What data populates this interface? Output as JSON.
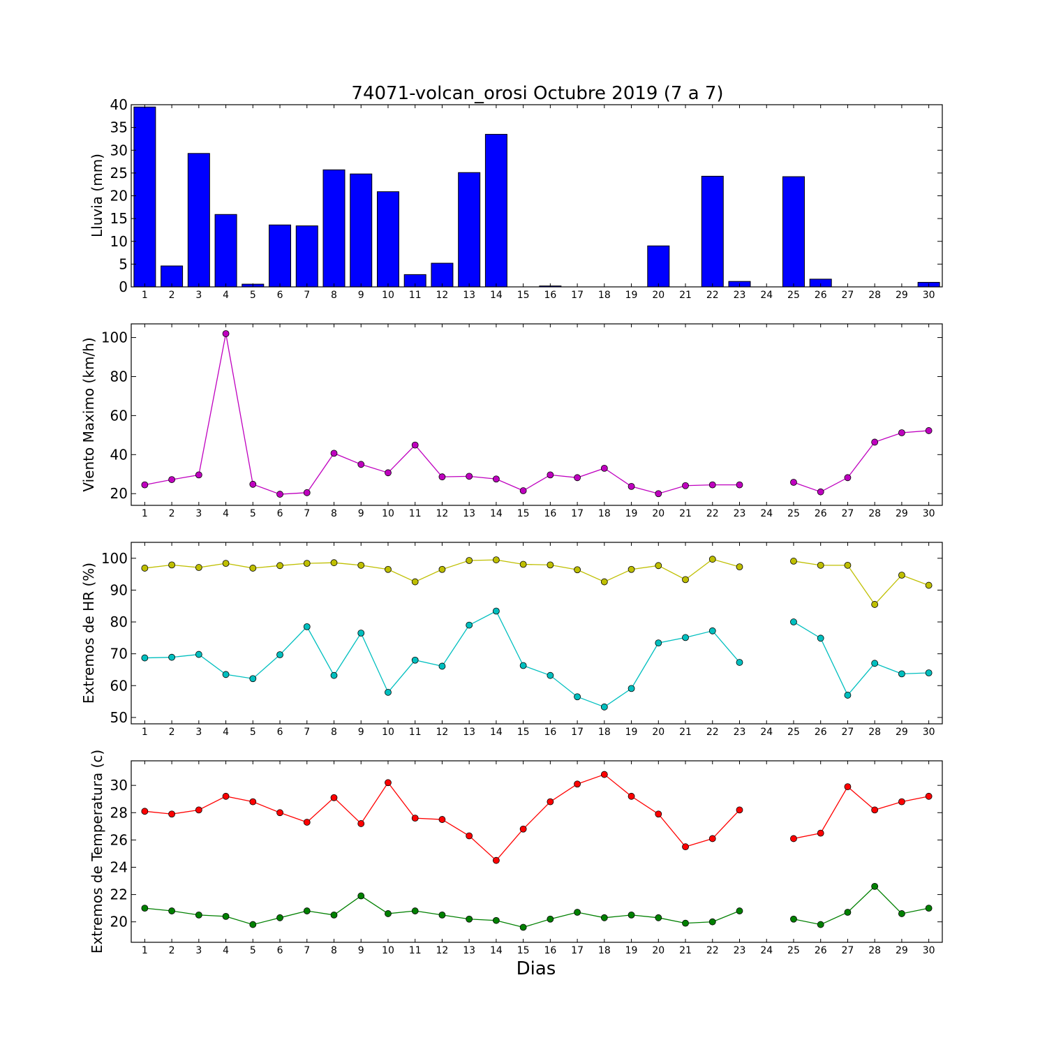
{
  "title": "74071-volcan_orosi Octubre 2019  (7 a 7)",
  "xlabel": "Dias",
  "chart_data": [
    {
      "id": "rain",
      "type": "bar",
      "ylabel": "Lluvia (mm)",
      "ylim": [
        0,
        40
      ],
      "yticks": [
        0,
        5,
        10,
        15,
        20,
        25,
        30,
        35,
        40
      ],
      "color": "#0000ff",
      "categories": [
        1,
        2,
        3,
        4,
        5,
        6,
        7,
        8,
        9,
        10,
        11,
        12,
        13,
        14,
        15,
        16,
        17,
        18,
        19,
        20,
        21,
        22,
        23,
        24,
        25,
        26,
        27,
        28,
        29,
        30
      ],
      "values": [
        39.5,
        4.6,
        29.3,
        15.9,
        0.6,
        13.6,
        13.4,
        25.7,
        24.8,
        20.9,
        2.7,
        5.2,
        25.1,
        33.5,
        0,
        0.2,
        0,
        0,
        0,
        9.0,
        0,
        24.3,
        1.2,
        0,
        24.2,
        1.7,
        0,
        0,
        0,
        1.0
      ]
    },
    {
      "id": "wind",
      "type": "line",
      "ylabel": "Viento Maximo (km/h)",
      "ylim": [
        14,
        107
      ],
      "yticks": [
        20,
        40,
        60,
        80,
        100
      ],
      "series": [
        {
          "color": "#bf00bf",
          "values": [
            24.5,
            27.2,
            29.6,
            102.0,
            24.8,
            19.7,
            20.5,
            40.7,
            35.0,
            30.7,
            44.9,
            28.6,
            28.9,
            27.5,
            21.5,
            29.6,
            28.2,
            33.0,
            23.7,
            20.0,
            24.1,
            24.5,
            24.5,
            null,
            25.8,
            20.9,
            28.2,
            46.4,
            51.2,
            52.3
          ]
        }
      ]
    },
    {
      "id": "humidity",
      "type": "line",
      "ylabel": "Extremos de HR (%)",
      "ylim": [
        48,
        105
      ],
      "yticks": [
        50,
        60,
        70,
        80,
        90,
        100
      ],
      "series": [
        {
          "color": "#bfbf00",
          "values": [
            96.9,
            97.9,
            97.1,
            98.4,
            96.9,
            97.7,
            98.4,
            98.6,
            97.8,
            96.5,
            92.6,
            96.5,
            99.3,
            99.5,
            98.1,
            97.9,
            96.4,
            92.6,
            96.5,
            97.7,
            93.3,
            99.7,
            97.3,
            null,
            99.1,
            97.8,
            97.8,
            85.5,
            94.7,
            91.5
          ]
        },
        {
          "color": "#00bfbf",
          "values": [
            68.7,
            68.9,
            69.8,
            63.5,
            62.2,
            69.7,
            78.5,
            63.2,
            76.5,
            57.9,
            68.0,
            66.1,
            79.0,
            83.4,
            66.3,
            63.2,
            56.5,
            53.3,
            59.1,
            73.4,
            75.1,
            77.2,
            67.3,
            null,
            80.0,
            74.9,
            57.0,
            67.0,
            63.7,
            64.0
          ]
        }
      ]
    },
    {
      "id": "temperature",
      "type": "line",
      "ylabel": "Extremos de Temperatura (c)",
      "ylim": [
        18.5,
        31.8
      ],
      "yticks": [
        20,
        22,
        24,
        26,
        28,
        30
      ],
      "series": [
        {
          "color": "#ff0000",
          "values": [
            28.1,
            27.9,
            28.2,
            29.2,
            28.8,
            28.0,
            27.3,
            29.1,
            27.2,
            30.2,
            27.6,
            27.5,
            26.3,
            24.5,
            26.8,
            28.8,
            30.1,
            30.8,
            29.2,
            27.9,
            25.5,
            26.1,
            28.2,
            null,
            26.1,
            26.5,
            29.9,
            28.2,
            28.8,
            29.2
          ]
        },
        {
          "color": "#008000",
          "values": [
            21.0,
            20.8,
            20.5,
            20.4,
            19.8,
            20.3,
            20.8,
            20.5,
            21.9,
            20.6,
            20.8,
            20.5,
            20.2,
            20.1,
            19.6,
            20.2,
            20.7,
            20.3,
            20.5,
            20.3,
            19.9,
            20.0,
            20.8,
            null,
            20.2,
            19.8,
            20.7,
            22.6,
            20.6,
            21.0
          ]
        }
      ]
    }
  ]
}
